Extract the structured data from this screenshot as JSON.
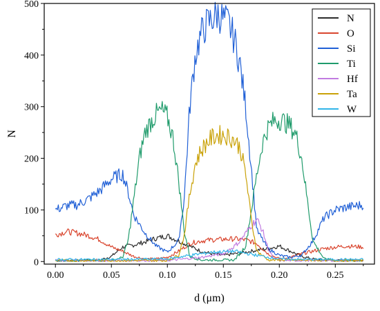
{
  "chart_data": {
    "type": "line",
    "title": "",
    "xlabel": "d (μm)",
    "ylabel": "N",
    "xlim": [
      -0.01,
      0.285
    ],
    "ylim": [
      -5,
      500
    ],
    "xticks": [
      "0.00",
      "0.05",
      "0.10",
      "0.15",
      "0.20",
      "0.25"
    ],
    "yticks": [
      "0",
      "100",
      "200",
      "300",
      "400",
      "500"
    ],
    "legend_position": "top-right",
    "grid": false,
    "series": [
      {
        "name": "N",
        "color": "#2b2b2b",
        "x": [
          0.0,
          0.02,
          0.04,
          0.05,
          0.06,
          0.07,
          0.08,
          0.09,
          0.1,
          0.11,
          0.12,
          0.13,
          0.14,
          0.15,
          0.16,
          0.17,
          0.18,
          0.19,
          0.2,
          0.21,
          0.22,
          0.23,
          0.24,
          0.25,
          0.26,
          0.275
        ],
        "y": [
          2,
          2,
          3,
          10,
          28,
          32,
          38,
          45,
          50,
          40,
          30,
          20,
          15,
          12,
          15,
          18,
          22,
          25,
          30,
          20,
          10,
          5,
          3,
          2,
          2,
          2
        ]
      },
      {
        "name": "O",
        "color": "#d9452e",
        "x": [
          0.0,
          0.01,
          0.02,
          0.03,
          0.04,
          0.05,
          0.06,
          0.07,
          0.08,
          0.09,
          0.1,
          0.11,
          0.12,
          0.13,
          0.14,
          0.15,
          0.16,
          0.17,
          0.18,
          0.19,
          0.2,
          0.21,
          0.22,
          0.23,
          0.24,
          0.25,
          0.26,
          0.275
        ],
        "y": [
          52,
          58,
          55,
          50,
          42,
          28,
          20,
          10,
          5,
          5,
          8,
          20,
          35,
          40,
          42,
          43,
          44,
          42,
          35,
          15,
          5,
          8,
          15,
          20,
          25,
          28,
          30,
          28
        ]
      },
      {
        "name": "Si",
        "color": "#1f5fd6",
        "x": [
          0.0,
          0.01,
          0.02,
          0.03,
          0.04,
          0.05,
          0.06,
          0.065,
          0.07,
          0.08,
          0.09,
          0.1,
          0.11,
          0.115,
          0.12,
          0.125,
          0.13,
          0.135,
          0.14,
          0.145,
          0.15,
          0.155,
          0.16,
          0.165,
          0.17,
          0.175,
          0.18,
          0.19,
          0.2,
          0.21,
          0.22,
          0.23,
          0.24,
          0.25,
          0.26,
          0.275
        ],
        "y": [
          100,
          108,
          110,
          122,
          138,
          160,
          170,
          135,
          90,
          55,
          30,
          18,
          40,
          120,
          300,
          400,
          440,
          460,
          470,
          480,
          470,
          460,
          430,
          380,
          300,
          180,
          60,
          25,
          12,
          8,
          12,
          40,
          85,
          100,
          105,
          110
        ]
      },
      {
        "name": "Ti",
        "color": "#1f9b6b",
        "x": [
          0.0,
          0.05,
          0.06,
          0.065,
          0.07,
          0.075,
          0.08,
          0.085,
          0.09,
          0.095,
          0.1,
          0.105,
          0.11,
          0.115,
          0.12,
          0.13,
          0.16,
          0.17,
          0.175,
          0.18,
          0.185,
          0.19,
          0.195,
          0.2,
          0.205,
          0.21,
          0.215,
          0.22,
          0.225,
          0.23,
          0.24,
          0.25,
          0.275
        ],
        "y": [
          2,
          2,
          8,
          40,
          120,
          200,
          250,
          270,
          285,
          292,
          280,
          240,
          160,
          60,
          10,
          3,
          3,
          30,
          100,
          170,
          230,
          260,
          272,
          275,
          270,
          262,
          245,
          200,
          120,
          40,
          5,
          2,
          2
        ]
      },
      {
        "name": "Hf",
        "color": "#c17be0",
        "x": [
          0.0,
          0.1,
          0.13,
          0.15,
          0.16,
          0.165,
          0.17,
          0.175,
          0.18,
          0.185,
          0.19,
          0.195,
          0.2,
          0.275
        ],
        "y": [
          2,
          2,
          8,
          15,
          30,
          40,
          55,
          70,
          82,
          60,
          25,
          5,
          2,
          2
        ]
      },
      {
        "name": "Ta",
        "color": "#c9a106",
        "x": [
          0.0,
          0.1,
          0.11,
          0.115,
          0.12,
          0.125,
          0.13,
          0.135,
          0.14,
          0.145,
          0.15,
          0.155,
          0.16,
          0.165,
          0.17,
          0.175,
          0.18,
          0.19,
          0.275
        ],
        "y": [
          2,
          2,
          12,
          50,
          130,
          190,
          215,
          230,
          240,
          245,
          245,
          242,
          235,
          220,
          170,
          80,
          20,
          3,
          2
        ]
      },
      {
        "name": "W",
        "color": "#2fb4e8",
        "x": [
          0.0,
          0.05,
          0.1,
          0.12,
          0.14,
          0.16,
          0.18,
          0.2,
          0.22,
          0.275
        ],
        "y": [
          4,
          4,
          5,
          12,
          18,
          20,
          12,
          5,
          4,
          4
        ]
      }
    ]
  }
}
